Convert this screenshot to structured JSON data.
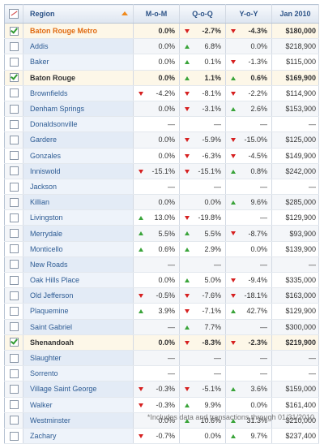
{
  "header": {
    "chart_icon": "line-chart-icon",
    "region": "Region",
    "mom": "M-o-M",
    "qoq": "Q-o-Q",
    "yoy": "Y-o-Y",
    "jan": "Jan 2010"
  },
  "rows": [
    {
      "checked": true,
      "hl": true,
      "metro": true,
      "region": "Baton Rouge Metro",
      "mom": "0.0%",
      "mom_dir": "",
      "qoq": "-2.7%",
      "qoq_dir": "down",
      "yoy": "-4.3%",
      "yoy_dir": "down",
      "jan": "$180,000"
    },
    {
      "checked": false,
      "region": "Addis",
      "mom": "0.0%",
      "mom_dir": "",
      "qoq": "6.8%",
      "qoq_dir": "up",
      "yoy": "0.0%",
      "yoy_dir": "",
      "jan": "$218,900"
    },
    {
      "checked": false,
      "region": "Baker",
      "mom": "0.0%",
      "mom_dir": "",
      "qoq": "0.1%",
      "qoq_dir": "up",
      "yoy": "-1.3%",
      "yoy_dir": "down",
      "jan": "$115,000"
    },
    {
      "checked": true,
      "hl": true,
      "region": "Baton Rouge",
      "mom": "0.0%",
      "mom_dir": "",
      "qoq": "1.1%",
      "qoq_dir": "up",
      "yoy": "0.6%",
      "yoy_dir": "up",
      "jan": "$169,900"
    },
    {
      "checked": false,
      "region": "Brownfields",
      "mom": "-4.2%",
      "mom_dir": "down",
      "qoq": "-8.1%",
      "qoq_dir": "down",
      "yoy": "-2.2%",
      "yoy_dir": "down",
      "jan": "$114,900"
    },
    {
      "checked": false,
      "region": "Denham Springs",
      "mom": "0.0%",
      "mom_dir": "",
      "qoq": "-3.1%",
      "qoq_dir": "down",
      "yoy": "2.6%",
      "yoy_dir": "up",
      "jan": "$153,900"
    },
    {
      "checked": false,
      "region": "Donaldsonville",
      "mom": "—",
      "mom_dir": "",
      "qoq": "—",
      "qoq_dir": "",
      "yoy": "—",
      "yoy_dir": "",
      "jan": "—"
    },
    {
      "checked": false,
      "region": "Gardere",
      "mom": "0.0%",
      "mom_dir": "",
      "qoq": "-5.9%",
      "qoq_dir": "down",
      "yoy": "-15.0%",
      "yoy_dir": "down",
      "jan": "$125,000"
    },
    {
      "checked": false,
      "region": "Gonzales",
      "mom": "0.0%",
      "mom_dir": "",
      "qoq": "-6.3%",
      "qoq_dir": "down",
      "yoy": "-4.5%",
      "yoy_dir": "down",
      "jan": "$149,900"
    },
    {
      "checked": false,
      "region": "Inniswold",
      "mom": "-15.1%",
      "mom_dir": "down",
      "qoq": "-15.1%",
      "qoq_dir": "down",
      "yoy": "0.8%",
      "yoy_dir": "up",
      "jan": "$242,000"
    },
    {
      "checked": false,
      "region": "Jackson",
      "mom": "—",
      "mom_dir": "",
      "qoq": "—",
      "qoq_dir": "",
      "yoy": "—",
      "yoy_dir": "",
      "jan": "—"
    },
    {
      "checked": false,
      "region": "Killian",
      "mom": "0.0%",
      "mom_dir": "",
      "qoq": "0.0%",
      "qoq_dir": "",
      "yoy": "9.6%",
      "yoy_dir": "up",
      "jan": "$285,000"
    },
    {
      "checked": false,
      "region": "Livingston",
      "mom": "13.0%",
      "mom_dir": "up",
      "qoq": "-19.8%",
      "qoq_dir": "down",
      "yoy": "—",
      "yoy_dir": "",
      "jan": "$129,900"
    },
    {
      "checked": false,
      "region": "Merrydale",
      "mom": "5.5%",
      "mom_dir": "up",
      "qoq": "5.5%",
      "qoq_dir": "up",
      "yoy": "-8.7%",
      "yoy_dir": "down",
      "jan": "$93,900"
    },
    {
      "checked": false,
      "region": "Monticello",
      "mom": "0.6%",
      "mom_dir": "up",
      "qoq": "2.9%",
      "qoq_dir": "up",
      "yoy": "0.0%",
      "yoy_dir": "",
      "jan": "$139,900"
    },
    {
      "checked": false,
      "region": "New Roads",
      "mom": "—",
      "mom_dir": "",
      "qoq": "—",
      "qoq_dir": "",
      "yoy": "—",
      "yoy_dir": "",
      "jan": "—"
    },
    {
      "checked": false,
      "region": "Oak Hills Place",
      "mom": "0.0%",
      "mom_dir": "",
      "qoq": "5.0%",
      "qoq_dir": "up",
      "yoy": "-9.4%",
      "yoy_dir": "down",
      "jan": "$335,000"
    },
    {
      "checked": false,
      "region": "Old Jefferson",
      "mom": "-0.5%",
      "mom_dir": "down",
      "qoq": "-7.6%",
      "qoq_dir": "down",
      "yoy": "-18.1%",
      "yoy_dir": "down",
      "jan": "$163,000"
    },
    {
      "checked": false,
      "region": "Plaquemine",
      "mom": "3.9%",
      "mom_dir": "up",
      "qoq": "-7.1%",
      "qoq_dir": "down",
      "yoy": "42.7%",
      "yoy_dir": "up",
      "jan": "$129,900"
    },
    {
      "checked": false,
      "region": "Saint Gabriel",
      "mom": "—",
      "mom_dir": "",
      "qoq": "7.7%",
      "qoq_dir": "up",
      "yoy": "—",
      "yoy_dir": "",
      "jan": "$300,000"
    },
    {
      "checked": true,
      "hl": true,
      "region": "Shenandoah",
      "mom": "0.0%",
      "mom_dir": "",
      "qoq": "-8.3%",
      "qoq_dir": "down",
      "yoy": "-2.3%",
      "yoy_dir": "down",
      "jan": "$219,900"
    },
    {
      "checked": false,
      "region": "Slaughter",
      "mom": "—",
      "mom_dir": "",
      "qoq": "—",
      "qoq_dir": "",
      "yoy": "—",
      "yoy_dir": "",
      "jan": "—"
    },
    {
      "checked": false,
      "region": "Sorrento",
      "mom": "—",
      "mom_dir": "",
      "qoq": "—",
      "qoq_dir": "",
      "yoy": "—",
      "yoy_dir": "",
      "jan": "—"
    },
    {
      "checked": false,
      "region": "Village Saint George",
      "mom": "-0.3%",
      "mom_dir": "down",
      "qoq": "-5.1%",
      "qoq_dir": "down",
      "yoy": "3.6%",
      "yoy_dir": "up",
      "jan": "$159,000"
    },
    {
      "checked": false,
      "region": "Walker",
      "mom": "-0.3%",
      "mom_dir": "down",
      "qoq": "9.9%",
      "qoq_dir": "up",
      "yoy": "0.0%",
      "yoy_dir": "",
      "jan": "$161,400"
    },
    {
      "checked": false,
      "region": "Westminster",
      "mom": "0.0%",
      "mom_dir": "",
      "qoq": "10.6%",
      "qoq_dir": "up",
      "yoy": "31.3%",
      "yoy_dir": "up",
      "jan": "$210,000"
    },
    {
      "checked": false,
      "region": "Zachary",
      "mom": "-0.7%",
      "mom_dir": "down",
      "qoq": "0.0%",
      "qoq_dir": "",
      "yoy": "9.7%",
      "yoy_dir": "up",
      "jan": "$237,400"
    }
  ],
  "footnote": "*Includes data and transactions through 01/31/2010",
  "colors": {
    "header_text": "#2c5387",
    "region_link": "#2e5c94",
    "metro": "#e06b12",
    "up_arrow": "#3aa43a",
    "down_arrow": "#d62020",
    "highlight_row": "#fdf7e8"
  }
}
